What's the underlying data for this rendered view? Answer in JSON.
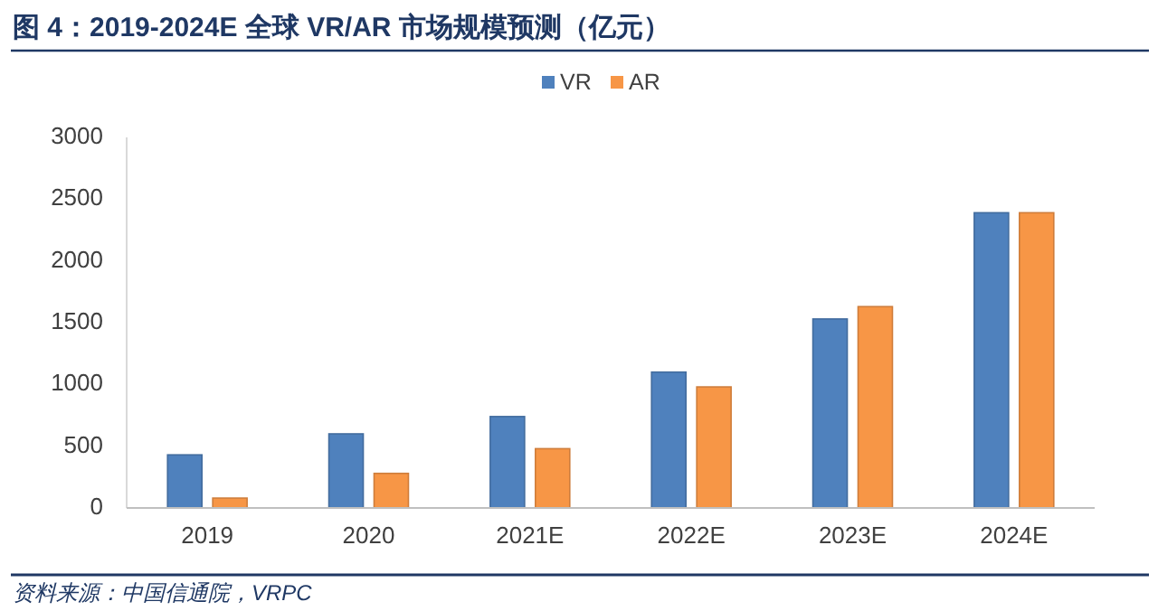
{
  "chart_data": {
    "type": "bar",
    "title": "图 4：2019-2024E 全球 VR/AR 市场规模预测（亿元）",
    "categories": [
      "2019",
      "2020",
      "2021E",
      "2022E",
      "2023E",
      "2024E"
    ],
    "series": [
      {
        "name": "VR",
        "color": "#4f81bd",
        "values": [
          430,
          600,
          740,
          1100,
          1530,
          2390
        ]
      },
      {
        "name": "AR",
        "color": "#f79646",
        "values": [
          80,
          280,
          480,
          980,
          1630,
          2390
        ]
      }
    ],
    "ylim": [
      0,
      3000
    ],
    "yticks": [
      0,
      500,
      1000,
      1500,
      2000,
      2500,
      3000
    ],
    "legend": "top",
    "annotations": [
      "资料来源：中国信通院，VRPC"
    ]
  }
}
